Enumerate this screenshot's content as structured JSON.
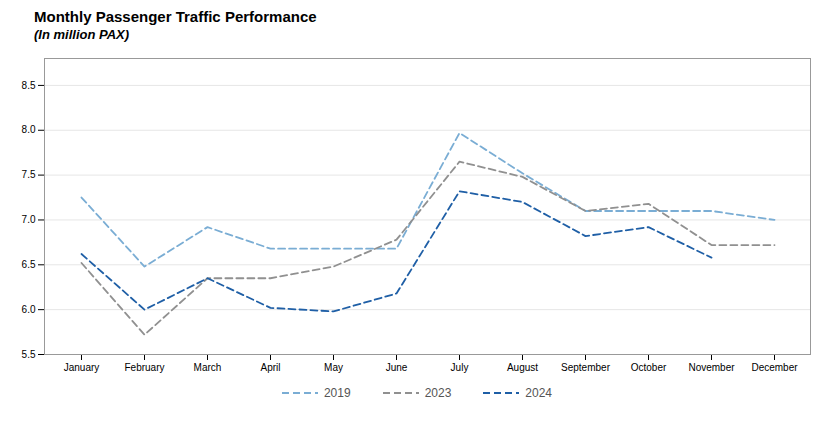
{
  "chart_data": {
    "type": "line",
    "title": "Monthly Passenger Traffic Performance",
    "subtitle": "(In million PAX)",
    "categories": [
      "January",
      "February",
      "March",
      "April",
      "May",
      "June",
      "July",
      "August",
      "September",
      "October",
      "November",
      "December"
    ],
    "series": [
      {
        "name": "2019",
        "color": "#7aadd4",
        "line_style": "dashed",
        "values": [
          7.25,
          6.48,
          6.92,
          6.68,
          6.68,
          6.68,
          7.97,
          7.52,
          7.1,
          7.1,
          7.1,
          7.0
        ]
      },
      {
        "name": "2023",
        "color": "#909090",
        "line_style": "dashed",
        "values": [
          6.52,
          5.72,
          6.35,
          6.35,
          6.48,
          6.78,
          7.65,
          7.48,
          7.1,
          7.18,
          6.72,
          6.72
        ]
      },
      {
        "name": "2024",
        "color": "#1f5fa6",
        "line_style": "dashed",
        "values": [
          6.62,
          6.0,
          6.35,
          6.02,
          5.98,
          6.18,
          7.32,
          7.2,
          6.82,
          6.92,
          6.58,
          null
        ]
      }
    ],
    "ylim": [
      5.5,
      8.8
    ],
    "yticks": [
      5.5,
      {
        "value": 6.0,
        "label": "6.0"
      },
      6.5,
      {
        "value": 7.0,
        "label": "7.0"
      },
      7.5,
      {
        "value": 8.0,
        "label": "8.0"
      },
      8.5
    ],
    "grid": true,
    "legend": "bottom"
  }
}
